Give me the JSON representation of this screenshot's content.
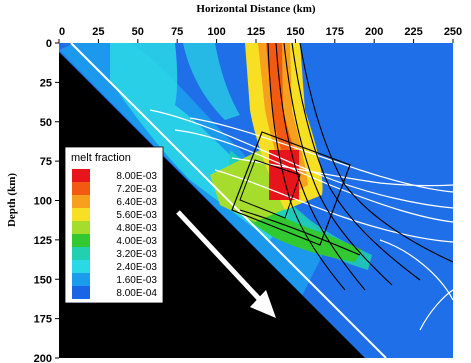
{
  "chart_data": {
    "type": "heatmap",
    "title": "",
    "xlabel": "Horizontal Distance (km)",
    "ylabel": "Depth (km)",
    "xlim": [
      0,
      250
    ],
    "ylim": [
      200,
      0
    ],
    "x_ticks": [
      0,
      25,
      50,
      75,
      100,
      125,
      150,
      175,
      200,
      225,
      250
    ],
    "y_ticks": [
      0,
      25,
      50,
      75,
      100,
      125,
      150,
      175,
      200
    ],
    "x_axis_position": "top",
    "legend": {
      "title": "melt fraction",
      "placement": "left",
      "entries": [
        {
          "label": "8.00E-03",
          "value": 0.008,
          "color": "#e8141c"
        },
        {
          "label": "7.20E-03",
          "value": 0.0072,
          "color": "#f25a12"
        },
        {
          "label": "6.40E-03",
          "value": 0.0064,
          "color": "#f7a01e"
        },
        {
          "label": "5.60E-03",
          "value": 0.0056,
          "color": "#f7e023"
        },
        {
          "label": "4.80E-03",
          "value": 0.0048,
          "color": "#a6dc2c"
        },
        {
          "label": "4.00E-03",
          "value": 0.004,
          "color": "#32c832"
        },
        {
          "label": "3.20E-03",
          "value": 0.0032,
          "color": "#20d0b0"
        },
        {
          "label": "2.40E-03",
          "value": 0.0024,
          "color": "#2ad8e6"
        },
        {
          "label": "1.60E-03",
          "value": 0.0016,
          "color": "#1c9cec"
        },
        {
          "label": "8.00E-04",
          "value": 0.0008,
          "color": "#1a64e6"
        }
      ]
    },
    "colors": {
      "background": "#1f6fe8",
      "slab": "#000000",
      "slab_top": "#ffffff",
      "streamline_white": "#ffffff",
      "streamline_black": "#000000",
      "arrow": "#ffffff"
    }
  }
}
